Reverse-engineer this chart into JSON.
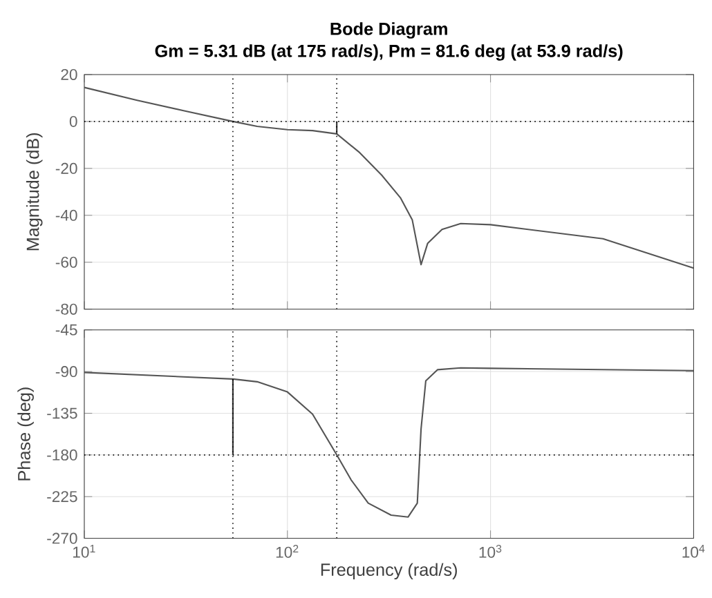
{
  "chart_data": [
    {
      "type": "line",
      "title": "Bode Diagram",
      "subtitle": "Gm = 5.31 dB (at 175 rad/s),  Pm = 81.6 deg (at 53.9 rad/s)",
      "ylabel": "Magnitude (dB)",
      "series": [
        {
          "color": "#555555",
          "x": [
            10,
            18.2,
            30.8,
            53.9,
            71,
            100,
            133,
            175,
            225,
            292,
            360,
            412,
            455,
            490,
            577,
            713,
            1000,
            3580,
            10000
          ],
          "values": [
            14.5,
            9,
            4.6,
            0,
            -2.1,
            -3.5,
            -3.9,
            -5.3,
            -13,
            -23,
            -32.5,
            -42,
            -61,
            -52,
            -46,
            -43.5,
            -44,
            -50,
            -62.5
          ]
        },
        {
          "color": "#333333",
          "x": [
            175,
            175
          ],
          "values": [
            -5.3,
            0
          ]
        }
      ],
      "log": "x",
      "xlim": [
        10,
        10000
      ],
      "ylim": [
        -80,
        20
      ],
      "xticks": [
        {
          "value": 10,
          "label": null
        },
        {
          "value": 100,
          "label": null
        },
        {
          "value": 1000,
          "label": null
        },
        {
          "value": 10000,
          "label": null
        }
      ],
      "yticks": [
        -80,
        -60,
        -40,
        -20,
        0,
        20
      ],
      "tick_labels": "y",
      "grid": true,
      "marker": "none",
      "line_style": "solid",
      "ref_lines": [
        {
          "axis": "y",
          "value": 0,
          "color": "#000000",
          "line_style": "dotted"
        },
        {
          "axis": "x",
          "value": 53.9,
          "color": "#000000",
          "line_style": "dotted"
        },
        {
          "axis": "x",
          "value": 175,
          "color": "#000000",
          "line_style": "dotted"
        }
      ]
    },
    {
      "type": "line",
      "xlabel": "Frequency  (rad/s)",
      "ylabel": "Phase (deg)",
      "series": [
        {
          "color": "#555555",
          "x": [
            10,
            53.9,
            71,
            100,
            133,
            175,
            206,
            250,
            324,
            393,
            436,
            455,
            480,
            548,
            713,
            1000,
            10000
          ],
          "values": [
            -91,
            -98,
            -101,
            -112,
            -136,
            -180,
            -207,
            -232,
            -245,
            -247,
            -232,
            -152,
            -100,
            -88,
            -86,
            -86.5,
            -89
          ]
        },
        {
          "color": "#333333",
          "x": [
            53.9,
            53.9
          ],
          "values": [
            -180,
            -98
          ]
        }
      ],
      "log": "x",
      "xlim": [
        10,
        10000
      ],
      "ylim": [
        -270,
        -45
      ],
      "xticks": [
        {
          "value": 10,
          "label": "10$^{1}$"
        },
        {
          "value": 100,
          "label": "10$^{2}$"
        },
        {
          "value": 1000,
          "label": "10$^{3}$"
        },
        {
          "value": 10000,
          "label": "10$^{4}$"
        }
      ],
      "yticks": [
        -270,
        -225,
        -180,
        -135,
        -90,
        -45
      ],
      "grid": true,
      "marker": "none",
      "line_style": "solid",
      "ref_lines": [
        {
          "axis": "y",
          "value": -180,
          "color": "#000000",
          "line_style": "dotted"
        },
        {
          "axis": "x",
          "value": 53.9,
          "color": "#000000",
          "line_style": "dotted"
        },
        {
          "axis": "x",
          "value": 175,
          "color": "#000000",
          "line_style": "dotted"
        }
      ]
    }
  ]
}
